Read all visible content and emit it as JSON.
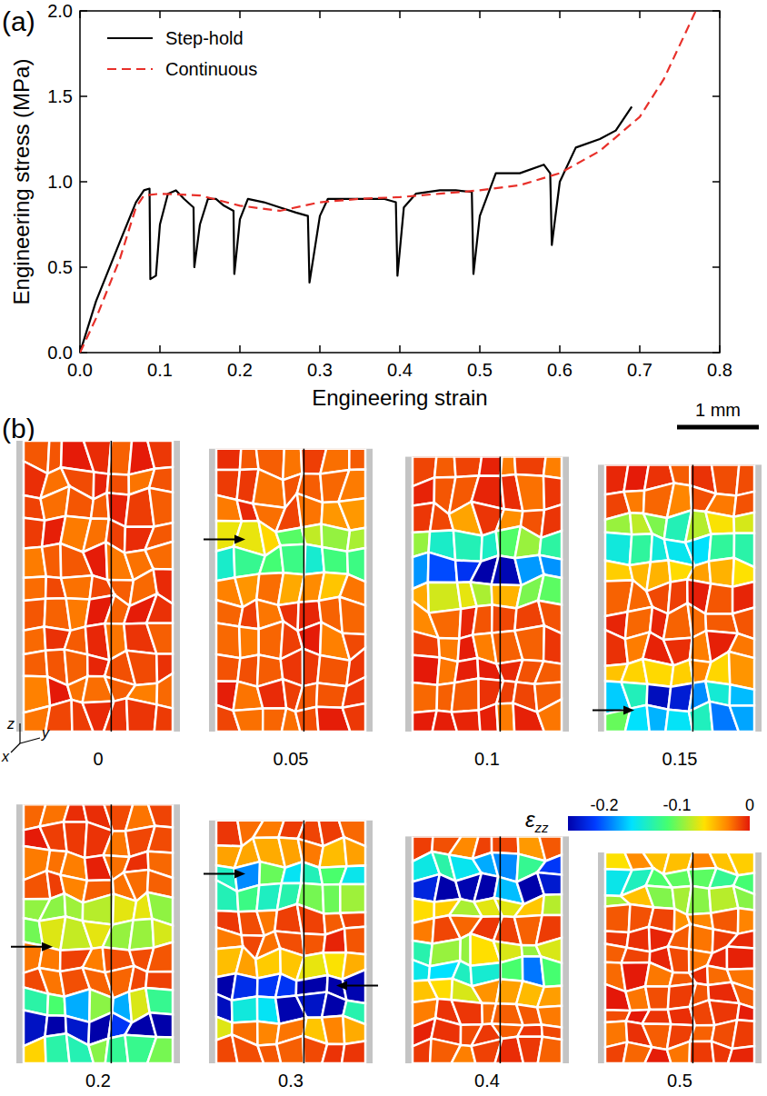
{
  "panel_labels": [
    "(a)",
    "(b)"
  ],
  "chart_data": {
    "type": "line",
    "xlabel": "Engineering strain",
    "ylabel": "Engineering stress (MPa)",
    "xlim": [
      0,
      0.8
    ],
    "ylim": [
      0,
      2.0
    ],
    "xticks": [
      {
        "value": 0,
        "label": "0.0"
      },
      {
        "value": 0.1,
        "label": "0.1"
      },
      {
        "value": 0.2,
        "label": "0.2"
      },
      {
        "value": 0.3,
        "label": "0.3"
      },
      {
        "value": 0.4,
        "label": "0.4"
      },
      {
        "value": 0.5,
        "label": "0.5"
      },
      {
        "value": 0.6,
        "label": "0.6"
      },
      {
        "value": 0.7,
        "label": "0.7"
      },
      {
        "value": 0.8,
        "label": "0.8"
      }
    ],
    "yticks": [
      {
        "value": 0,
        "label": "0.0"
      },
      {
        "value": 0.5,
        "label": "0.5"
      },
      {
        "value": 1.0,
        "label": "1.0"
      },
      {
        "value": 1.5,
        "label": "1.5"
      },
      {
        "value": 2.0,
        "label": "2.0"
      }
    ],
    "legend": "upper left",
    "series": [
      {
        "name": "Step-hold",
        "color": "#000000",
        "line_style": "solid",
        "x": [
          0,
          0.02,
          0.05,
          0.07,
          0.08,
          0.087,
          0.088,
          0.095,
          0.1,
          0.11,
          0.12,
          0.13,
          0.142,
          0.143,
          0.15,
          0.16,
          0.17,
          0.18,
          0.192,
          0.193,
          0.2,
          0.21,
          0.23,
          0.25,
          0.27,
          0.285,
          0.287,
          0.3,
          0.31,
          0.33,
          0.35,
          0.38,
          0.395,
          0.397,
          0.405,
          0.42,
          0.45,
          0.47,
          0.49,
          0.492,
          0.5,
          0.52,
          0.55,
          0.58,
          0.588,
          0.59,
          0.6,
          0.62,
          0.65,
          0.67,
          0.69
        ],
        "values": [
          0,
          0.3,
          0.65,
          0.88,
          0.95,
          0.96,
          0.43,
          0.45,
          0.75,
          0.93,
          0.95,
          0.9,
          0.85,
          0.5,
          0.75,
          0.9,
          0.9,
          0.86,
          0.83,
          0.46,
          0.78,
          0.9,
          0.88,
          0.85,
          0.82,
          0.8,
          0.41,
          0.8,
          0.9,
          0.9,
          0.9,
          0.9,
          0.88,
          0.45,
          0.85,
          0.93,
          0.95,
          0.95,
          0.94,
          0.46,
          0.8,
          1.05,
          1.05,
          1.1,
          1.05,
          0.63,
          1.0,
          1.2,
          1.25,
          1.3,
          1.44
        ]
      },
      {
        "name": "Continuous",
        "color": "#e8302a",
        "line_style": "dashed",
        "x": [
          0,
          0.02,
          0.05,
          0.07,
          0.08,
          0.1,
          0.15,
          0.2,
          0.25,
          0.3,
          0.35,
          0.4,
          0.45,
          0.5,
          0.55,
          0.6,
          0.65,
          0.7,
          0.73,
          0.75,
          0.77
        ],
        "values": [
          0,
          0.2,
          0.55,
          0.85,
          0.92,
          0.93,
          0.92,
          0.86,
          0.83,
          0.88,
          0.9,
          0.91,
          0.93,
          0.95,
          0.98,
          1.05,
          1.18,
          1.38,
          1.6,
          1.8,
          2.0
        ]
      }
    ]
  },
  "strain_maps": {
    "strains": [
      0,
      0.05,
      0.1,
      0.15,
      0.2,
      0.3,
      0.4,
      0.5
    ],
    "scale_bar": "1 mm",
    "axes": [
      "z",
      "x",
      "y"
    ],
    "colorbar": {
      "title": "ε",
      "title_subscript": "zz",
      "range": [
        -0.25,
        0
      ],
      "ticks": [
        -0.2,
        -0.1,
        0
      ]
    }
  }
}
